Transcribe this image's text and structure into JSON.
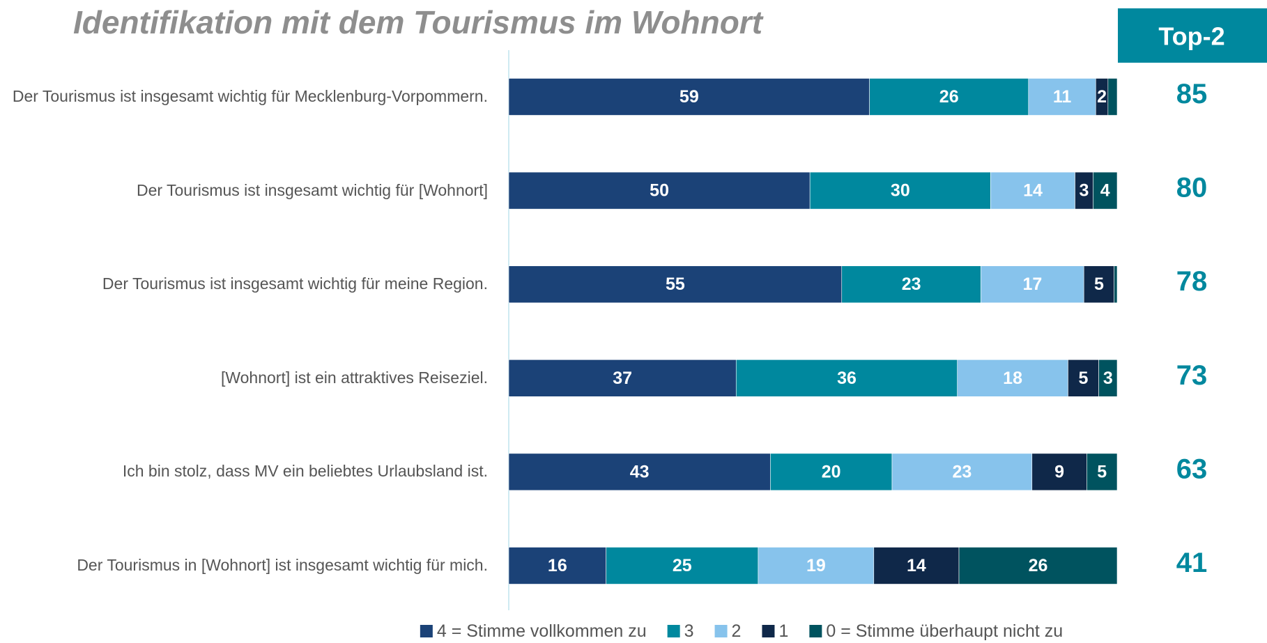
{
  "chart_data": {
    "type": "bar",
    "orientation": "horizontal",
    "stacked": "percent",
    "title": "Identifikation mit dem Tourismus im Wohnort",
    "categories": [
      "Der Tourismus ist insgesamt wichtig für Mecklenburg-Vorpommern.",
      "Der Tourismus ist insgesamt wichtig für [Wohnort]",
      "Der Tourismus ist insgesamt wichtig für meine Region.",
      "[Wohnort] ist ein attraktives Reiseziel.",
      "Ich bin stolz, dass MV ein beliebtes Urlaubsland ist.",
      "Der Tourismus in [Wohnort] ist insgesamt wichtig für mich."
    ],
    "series": [
      {
        "name": "4 = Stimme vollkommen zu",
        "color": "#1b4277",
        "values": [
          59,
          50,
          55,
          37,
          43,
          16
        ]
      },
      {
        "name": "3",
        "color": "#00889e",
        "values": [
          26,
          30,
          23,
          36,
          20,
          25
        ]
      },
      {
        "name": "2",
        "color": "#87c3ec",
        "values": [
          11,
          14,
          17,
          18,
          23,
          19
        ]
      },
      {
        "name": "1",
        "color": "#0f2849",
        "values": [
          2,
          3,
          5,
          5,
          9,
          14
        ]
      },
      {
        "name": "0 = Stimme überhaupt nicht zu",
        "color": "#00535f",
        "values": [
          1.5,
          4,
          0.5,
          3,
          5,
          26
        ],
        "value_labels": [
          null,
          "4",
          null,
          "3",
          "5",
          "26"
        ]
      }
    ],
    "top2_title": "Top-2",
    "top2_values": [
      85,
      80,
      78,
      73,
      63,
      41
    ],
    "legend": "bottom"
  }
}
